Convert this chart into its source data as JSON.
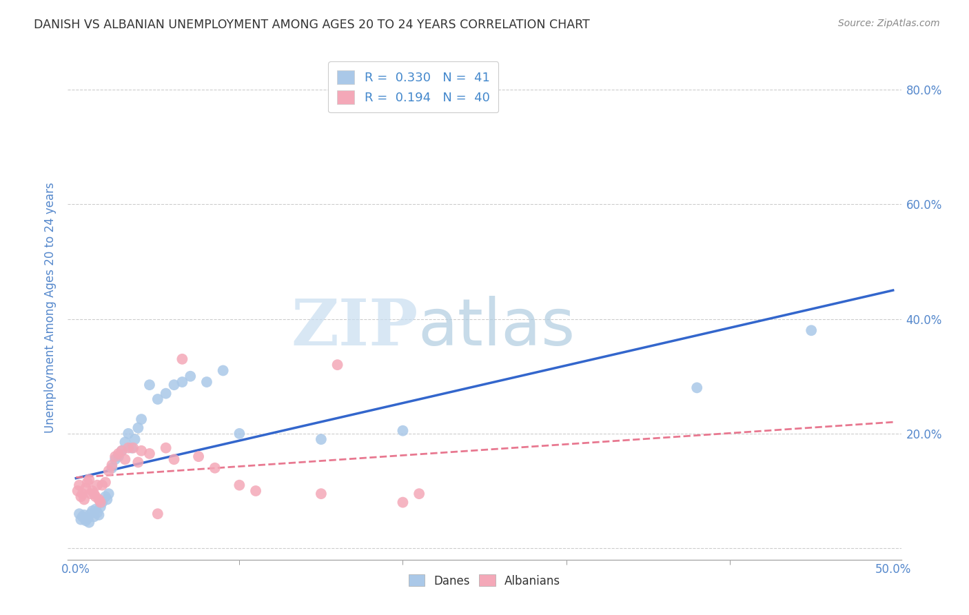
{
  "title": "DANISH VS ALBANIAN UNEMPLOYMENT AMONG AGES 20 TO 24 YEARS CORRELATION CHART",
  "source": "Source: ZipAtlas.com",
  "ylabel": "Unemployment Among Ages 20 to 24 years",
  "xlim": [
    -0.005,
    0.505
  ],
  "ylim": [
    -0.02,
    0.86
  ],
  "xticks": [
    0.0,
    0.5
  ],
  "xticklabels": [
    "0.0%",
    "50.0%"
  ],
  "yticks": [
    0.0,
    0.2,
    0.4,
    0.6,
    0.8
  ],
  "yticklabels": [
    "",
    "20.0%",
    "40.0%",
    "60.0%",
    "80.0%"
  ],
  "danes_color": "#aac8e8",
  "albanians_color": "#f4a8b8",
  "danes_line_color": "#3366cc",
  "albanians_line_color": "#e87890",
  "danes_R": 0.33,
  "danes_N": 41,
  "albanians_R": 0.194,
  "albanians_N": 40,
  "danes_x": [
    0.002,
    0.003,
    0.004,
    0.005,
    0.006,
    0.007,
    0.008,
    0.009,
    0.01,
    0.011,
    0.012,
    0.013,
    0.014,
    0.015,
    0.016,
    0.018,
    0.019,
    0.02,
    0.022,
    0.024,
    0.026,
    0.028,
    0.03,
    0.032,
    0.034,
    0.036,
    0.038,
    0.04,
    0.045,
    0.05,
    0.055,
    0.06,
    0.065,
    0.07,
    0.08,
    0.09,
    0.1,
    0.15,
    0.2,
    0.38,
    0.45
  ],
  "danes_y": [
    0.06,
    0.05,
    0.055,
    0.058,
    0.048,
    0.052,
    0.045,
    0.06,
    0.065,
    0.055,
    0.068,
    0.062,
    0.058,
    0.072,
    0.08,
    0.09,
    0.085,
    0.095,
    0.14,
    0.155,
    0.16,
    0.17,
    0.185,
    0.2,
    0.175,
    0.19,
    0.21,
    0.225,
    0.285,
    0.26,
    0.27,
    0.285,
    0.29,
    0.3,
    0.29,
    0.31,
    0.2,
    0.19,
    0.205,
    0.28,
    0.38
  ],
  "albanians_x": [
    0.001,
    0.002,
    0.003,
    0.004,
    0.005,
    0.006,
    0.007,
    0.008,
    0.009,
    0.01,
    0.011,
    0.012,
    0.013,
    0.014,
    0.015,
    0.016,
    0.018,
    0.02,
    0.022,
    0.024,
    0.026,
    0.028,
    0.03,
    0.032,
    0.035,
    0.038,
    0.04,
    0.045,
    0.05,
    0.055,
    0.06,
    0.065,
    0.075,
    0.085,
    0.1,
    0.11,
    0.15,
    0.16,
    0.2,
    0.21
  ],
  "albanians_y": [
    0.1,
    0.11,
    0.09,
    0.095,
    0.085,
    0.105,
    0.115,
    0.12,
    0.095,
    0.1,
    0.095,
    0.09,
    0.11,
    0.085,
    0.08,
    0.11,
    0.115,
    0.135,
    0.145,
    0.16,
    0.165,
    0.17,
    0.155,
    0.175,
    0.175,
    0.15,
    0.17,
    0.165,
    0.06,
    0.175,
    0.155,
    0.33,
    0.16,
    0.14,
    0.11,
    0.1,
    0.095,
    0.32,
    0.08,
    0.095
  ],
  "watermark_zip": "ZIP",
  "watermark_atlas": "atlas",
  "background_color": "#ffffff",
  "grid_color": "#cccccc",
  "title_color": "#333333",
  "axis_label_color": "#5588cc",
  "tick_color": "#5588cc",
  "legend_R_color": "#4488cc",
  "source_color": "#888888"
}
